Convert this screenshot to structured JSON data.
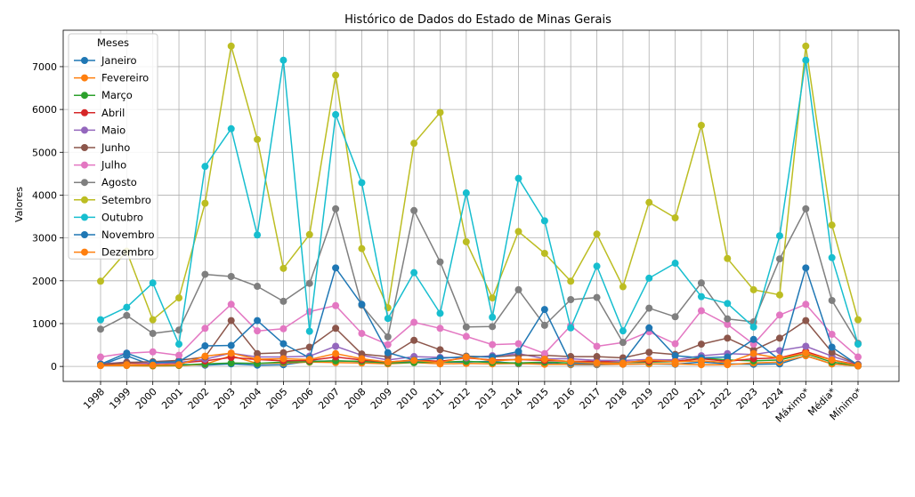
{
  "chart_data": {
    "type": "line",
    "title": "Histórico de Dados do Estado de Minas Gerais",
    "xlabel": "",
    "ylabel": "Valores",
    "ylim": [
      -350,
      7850
    ],
    "yticks": [
      0,
      1000,
      2000,
      3000,
      4000,
      5000,
      6000,
      7000
    ],
    "grid": true,
    "legend": {
      "title": "Meses",
      "placement": "top-left"
    },
    "categories": [
      "1998",
      "1999",
      "2000",
      "2001",
      "2002",
      "2003",
      "2004",
      "2005",
      "2006",
      "2007",
      "2008",
      "2009",
      "2010",
      "2011",
      "2012",
      "2013",
      "2014",
      "2015",
      "2016",
      "2017",
      "2018",
      "2019",
      "2020",
      "2021",
      "2022",
      "2023",
      "2024",
      "Máximo*",
      "Média*",
      "Mínimo*"
    ],
    "series": [
      {
        "name": "Janeiro",
        "color": "#1f77b4",
        "values": [
          30,
          250,
          20,
          50,
          30,
          60,
          30,
          40,
          120,
          130,
          110,
          80,
          120,
          100,
          100,
          120,
          60,
          80,
          40,
          40,
          50,
          60,
          50,
          100,
          60,
          50,
          60,
          250,
          60,
          10
        ]
      },
      {
        "name": "Fevereiro",
        "color": "#ff7f0e",
        "values": [
          20,
          20,
          10,
          20,
          50,
          250,
          70,
          80,
          100,
          90,
          80,
          60,
          90,
          60,
          70,
          60,
          70,
          50,
          50,
          50,
          50,
          60,
          60,
          40,
          40,
          80,
          100,
          250,
          60,
          10
        ]
      },
      {
        "name": "Março",
        "color": "#2ca02c",
        "values": [
          30,
          40,
          20,
          30,
          60,
          80,
          70,
          100,
          110,
          130,
          120,
          80,
          90,
          100,
          120,
          90,
          80,
          100,
          80,
          90,
          90,
          100,
          110,
          200,
          150,
          130,
          150,
          300,
          100,
          20
        ]
      },
      {
        "name": "Abril",
        "color": "#d62728",
        "values": [
          40,
          80,
          60,
          80,
          130,
          210,
          160,
          130,
          140,
          220,
          150,
          100,
          150,
          120,
          200,
          150,
          160,
          140,
          120,
          120,
          100,
          120,
          120,
          180,
          120,
          180,
          200,
          350,
          150,
          40
        ]
      },
      {
        "name": "Maio",
        "color": "#9467bd",
        "values": [
          60,
          100,
          70,
          90,
          170,
          310,
          220,
          220,
          240,
          470,
          260,
          150,
          230,
          210,
          200,
          250,
          300,
          180,
          180,
          140,
          140,
          160,
          150,
          250,
          300,
          280,
          370,
          470,
          240,
          50
        ]
      },
      {
        "name": "Junho",
        "color": "#8c564b",
        "values": [
          50,
          90,
          110,
          140,
          220,
          1070,
          300,
          320,
          450,
          890,
          290,
          230,
          610,
          390,
          240,
          220,
          260,
          260,
          230,
          230,
          200,
          330,
          280,
          520,
          660,
          380,
          660,
          1070,
          330,
          40
        ]
      },
      {
        "name": "Julho",
        "color": "#e377c2",
        "values": [
          220,
          310,
          340,
          260,
          890,
          1450,
          830,
          880,
          1280,
          1420,
          770,
          510,
          1030,
          890,
          700,
          510,
          530,
          300,
          950,
          470,
          560,
          810,
          530,
          1300,
          980,
          520,
          1200,
          1450,
          750,
          220
        ]
      },
      {
        "name": "Agosto",
        "color": "#7f7f7f",
        "values": [
          870,
          1190,
          770,
          850,
          2150,
          2100,
          1870,
          1520,
          1940,
          3680,
          1430,
          690,
          3640,
          2440,
          920,
          930,
          1790,
          960,
          1560,
          1610,
          560,
          1360,
          1160,
          1950,
          1110,
          1040,
          2510,
          3680,
          1540,
          540
        ]
      },
      {
        "name": "Setembro",
        "color": "#bcbd22",
        "values": [
          1990,
          2690,
          1090,
          1600,
          3810,
          7480,
          5300,
          2290,
          3080,
          6800,
          2750,
          1370,
          5210,
          5930,
          2910,
          1600,
          3150,
          2640,
          1990,
          3090,
          1860,
          3830,
          3470,
          5630,
          2520,
          1790,
          1670,
          7480,
          3300,
          1090
        ]
      },
      {
        "name": "Outubro",
        "color": "#17becf",
        "values": [
          1090,
          1380,
          1950,
          520,
          4670,
          5550,
          3070,
          7150,
          820,
          5880,
          4290,
          1120,
          2190,
          1240,
          4050,
          1150,
          4390,
          3400,
          900,
          2340,
          830,
          2060,
          2410,
          1630,
          1470,
          920,
          3050,
          7150,
          2540,
          520
        ]
      },
      {
        "name": "Novembro",
        "color": "#1f77b4",
        "values": [
          50,
          310,
          90,
          110,
          480,
          490,
          1070,
          530,
          200,
          2300,
          1450,
          320,
          150,
          190,
          230,
          220,
          350,
          1330,
          80,
          70,
          100,
          900,
          250,
          200,
          220,
          630,
          150,
          2300,
          450,
          30
        ]
      },
      {
        "name": "Dezembro",
        "color": "#ff7f0e",
        "values": [
          20,
          40,
          30,
          40,
          240,
          310,
          170,
          180,
          160,
          300,
          180,
          100,
          140,
          90,
          220,
          130,
          160,
          170,
          110,
          80,
          80,
          150,
          110,
          130,
          90,
          300,
          190,
          310,
          150,
          20
        ]
      }
    ]
  }
}
